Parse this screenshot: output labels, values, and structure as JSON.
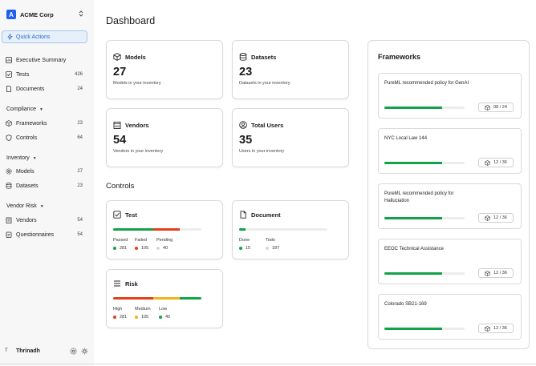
{
  "org": {
    "logo_letter": "A",
    "name": "ACME Corp"
  },
  "sidebar": {
    "quick_actions": "Quick Actions",
    "top_items": [
      {
        "label": "Executive Summary",
        "count": ""
      },
      {
        "label": "Tests",
        "count": "426"
      },
      {
        "label": "Documents",
        "count": "24"
      }
    ],
    "sections": [
      {
        "label": "Compliance",
        "items": [
          {
            "label": "Frameworks",
            "count": "23"
          },
          {
            "label": "Controls",
            "count": "64"
          }
        ]
      },
      {
        "label": "Inventory",
        "items": [
          {
            "label": "Models",
            "count": "27"
          },
          {
            "label": "Datasets",
            "count": "23"
          }
        ]
      },
      {
        "label": "Vendor Risk",
        "items": [
          {
            "label": "Vendors",
            "count": "54"
          },
          {
            "label": "Questionnaires",
            "count": "54"
          }
        ]
      }
    ],
    "user": {
      "initial": "T",
      "name": "Thrinadh"
    }
  },
  "main": {
    "title": "Dashboard",
    "stats": [
      {
        "icon": "cube-icon",
        "label": "Models",
        "value": "27",
        "sub": "Models in your inventory"
      },
      {
        "icon": "database-icon",
        "label": "Datasets",
        "value": "23",
        "sub": "Datasets in your inventory"
      },
      {
        "icon": "building-icon",
        "label": "Vendors",
        "value": "54",
        "sub": "Vendors in your inventory"
      },
      {
        "icon": "user-circle-icon",
        "label": "Total Users",
        "value": "35",
        "sub": "Users in your inventory"
      }
    ],
    "controls_title": "Controls",
    "controls": {
      "test": {
        "label": "Test",
        "legend": [
          {
            "label": "Passed",
            "value": "281"
          },
          {
            "label": "Failed",
            "value": "105"
          },
          {
            "label": "Pending",
            "value": "40"
          }
        ]
      },
      "document": {
        "label": "Document",
        "legend": [
          {
            "label": "Done",
            "value": "15"
          },
          {
            "label": "Todo",
            "value": "187"
          }
        ]
      },
      "risk": {
        "label": "Risk",
        "legend": [
          {
            "label": "High",
            "value": "281"
          },
          {
            "label": "Medium",
            "value": "105"
          },
          {
            "label": "Low",
            "value": "40"
          }
        ]
      }
    }
  },
  "frameworks": {
    "title": "Frameworks",
    "items": [
      {
        "name": "PureML recommended policy for GenAI",
        "progress": "08 / 24"
      },
      {
        "name": "NYC Local Law 144",
        "progress": "12 / 36"
      },
      {
        "name": "PureML recommended policy for Halluciation",
        "progress": "12 / 36"
      },
      {
        "name": "EEOC Technical Assistance",
        "progress": "12 / 36"
      },
      {
        "name": "Colorado SB21-169",
        "progress": "12 / 36"
      }
    ]
  },
  "bars": {
    "test_fractions": [
      0.45,
      0.3,
      0.0
    ],
    "document_fraction": 0.07,
    "risk_fractions": [
      0.45,
      0.3,
      0.25
    ],
    "framework_fill": 0.72
  },
  "colors": {
    "accent": "#1e5ff0",
    "green": "#13a24a",
    "red": "#e2401c",
    "yellow": "#f0b416",
    "grey": "#c8c8c8"
  }
}
